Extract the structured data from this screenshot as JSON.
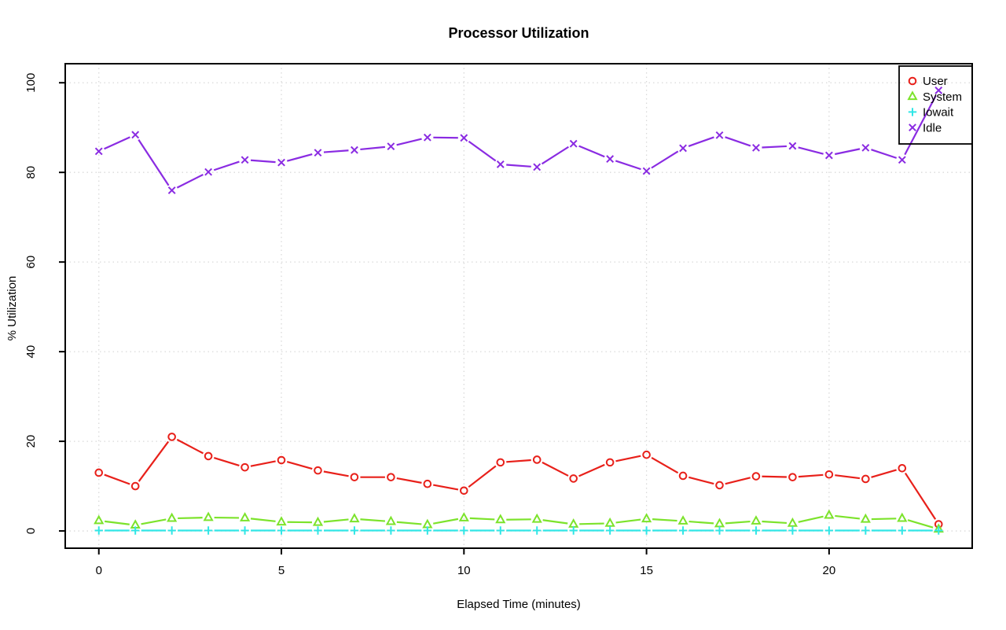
{
  "chart_data": {
    "type": "line",
    "title": "Processor Utilization",
    "xlabel": "Elapsed Time (minutes)",
    "ylabel": "% Utilization",
    "grid": true,
    "legend_position": "topright",
    "x_ticks": [
      0,
      5,
      10,
      15,
      20
    ],
    "y_ticks": [
      0,
      20,
      40,
      60,
      80,
      100
    ],
    "xlim": [
      -0.92,
      23.92
    ],
    "ylim": [
      -3.85,
      104.25
    ],
    "x": [
      0,
      1,
      2,
      3,
      4,
      5,
      6,
      7,
      8,
      9,
      10,
      11,
      12,
      13,
      14,
      15,
      16,
      17,
      18,
      19,
      20,
      21,
      22,
      23
    ],
    "series": [
      {
        "name": "User",
        "marker": "circle-open",
        "color": "#e8201a",
        "values": [
          13.0,
          10.0,
          21.0,
          16.7,
          14.2,
          15.8,
          13.5,
          12.0,
          12.0,
          10.5,
          9.0,
          15.3,
          15.9,
          11.7,
          15.3,
          17.0,
          12.3,
          10.2,
          12.2,
          12.0,
          12.6,
          11.6,
          14.0,
          1.5
        ]
      },
      {
        "name": "System",
        "marker": "triangle-open",
        "color": "#7ce32b",
        "values": [
          2.3,
          1.3,
          2.8,
          3.0,
          2.9,
          2.0,
          1.9,
          2.7,
          2.1,
          1.4,
          2.9,
          2.5,
          2.6,
          1.5,
          1.7,
          2.7,
          2.2,
          1.6,
          2.2,
          1.7,
          3.5,
          2.6,
          2.8,
          0.4
        ]
      },
      {
        "name": "Iowait",
        "marker": "plus",
        "color": "#30e6e6",
        "values": [
          0.1,
          0.1,
          0.1,
          0.1,
          0.1,
          0.1,
          0.1,
          0.1,
          0.1,
          0.1,
          0.1,
          0.1,
          0.1,
          0.1,
          0.1,
          0.1,
          0.1,
          0.1,
          0.1,
          0.1,
          0.1,
          0.1,
          0.1,
          0.1
        ]
      },
      {
        "name": "Idle",
        "marker": "x",
        "color": "#8a2be2",
        "values": [
          84.7,
          88.4,
          76.0,
          80.1,
          82.8,
          82.2,
          84.4,
          85.0,
          85.8,
          87.8,
          87.7,
          81.8,
          81.2,
          86.4,
          83.0,
          80.3,
          85.4,
          88.3,
          85.5,
          85.9,
          83.8,
          85.5,
          82.8,
          98.3
        ]
      }
    ]
  }
}
